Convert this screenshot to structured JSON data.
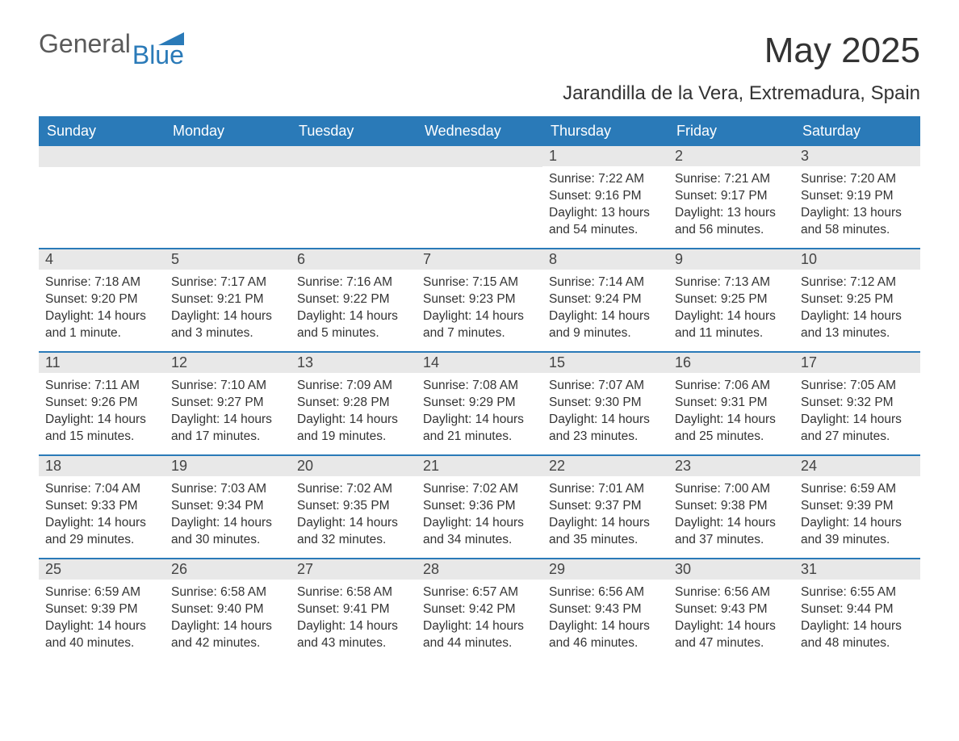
{
  "logo": {
    "part1": "General",
    "part2": "Blue"
  },
  "title": "May 2025",
  "location": "Jarandilla de la Vera, Extremadura, Spain",
  "colors": {
    "header_bg": "#2a7ab8",
    "header_text": "#ffffff",
    "daynum_bg": "#e8e8e8",
    "border": "#2a7ab8",
    "body_text": "#333333",
    "logo_general": "#5a5a5a",
    "logo_blue": "#2a7ab8"
  },
  "day_headers": [
    "Sunday",
    "Monday",
    "Tuesday",
    "Wednesday",
    "Thursday",
    "Friday",
    "Saturday"
  ],
  "weeks": [
    [
      {
        "day": "",
        "sunrise": "",
        "sunset": "",
        "daylight": ""
      },
      {
        "day": "",
        "sunrise": "",
        "sunset": "",
        "daylight": ""
      },
      {
        "day": "",
        "sunrise": "",
        "sunset": "",
        "daylight": ""
      },
      {
        "day": "",
        "sunrise": "",
        "sunset": "",
        "daylight": ""
      },
      {
        "day": "1",
        "sunrise": "Sunrise: 7:22 AM",
        "sunset": "Sunset: 9:16 PM",
        "daylight": "Daylight: 13 hours and 54 minutes."
      },
      {
        "day": "2",
        "sunrise": "Sunrise: 7:21 AM",
        "sunset": "Sunset: 9:17 PM",
        "daylight": "Daylight: 13 hours and 56 minutes."
      },
      {
        "day": "3",
        "sunrise": "Sunrise: 7:20 AM",
        "sunset": "Sunset: 9:19 PM",
        "daylight": "Daylight: 13 hours and 58 minutes."
      }
    ],
    [
      {
        "day": "4",
        "sunrise": "Sunrise: 7:18 AM",
        "sunset": "Sunset: 9:20 PM",
        "daylight": "Daylight: 14 hours and 1 minute."
      },
      {
        "day": "5",
        "sunrise": "Sunrise: 7:17 AM",
        "sunset": "Sunset: 9:21 PM",
        "daylight": "Daylight: 14 hours and 3 minutes."
      },
      {
        "day": "6",
        "sunrise": "Sunrise: 7:16 AM",
        "sunset": "Sunset: 9:22 PM",
        "daylight": "Daylight: 14 hours and 5 minutes."
      },
      {
        "day": "7",
        "sunrise": "Sunrise: 7:15 AM",
        "sunset": "Sunset: 9:23 PM",
        "daylight": "Daylight: 14 hours and 7 minutes."
      },
      {
        "day": "8",
        "sunrise": "Sunrise: 7:14 AM",
        "sunset": "Sunset: 9:24 PM",
        "daylight": "Daylight: 14 hours and 9 minutes."
      },
      {
        "day": "9",
        "sunrise": "Sunrise: 7:13 AM",
        "sunset": "Sunset: 9:25 PM",
        "daylight": "Daylight: 14 hours and 11 minutes."
      },
      {
        "day": "10",
        "sunrise": "Sunrise: 7:12 AM",
        "sunset": "Sunset: 9:25 PM",
        "daylight": "Daylight: 14 hours and 13 minutes."
      }
    ],
    [
      {
        "day": "11",
        "sunrise": "Sunrise: 7:11 AM",
        "sunset": "Sunset: 9:26 PM",
        "daylight": "Daylight: 14 hours and 15 minutes."
      },
      {
        "day": "12",
        "sunrise": "Sunrise: 7:10 AM",
        "sunset": "Sunset: 9:27 PM",
        "daylight": "Daylight: 14 hours and 17 minutes."
      },
      {
        "day": "13",
        "sunrise": "Sunrise: 7:09 AM",
        "sunset": "Sunset: 9:28 PM",
        "daylight": "Daylight: 14 hours and 19 minutes."
      },
      {
        "day": "14",
        "sunrise": "Sunrise: 7:08 AM",
        "sunset": "Sunset: 9:29 PM",
        "daylight": "Daylight: 14 hours and 21 minutes."
      },
      {
        "day": "15",
        "sunrise": "Sunrise: 7:07 AM",
        "sunset": "Sunset: 9:30 PM",
        "daylight": "Daylight: 14 hours and 23 minutes."
      },
      {
        "day": "16",
        "sunrise": "Sunrise: 7:06 AM",
        "sunset": "Sunset: 9:31 PM",
        "daylight": "Daylight: 14 hours and 25 minutes."
      },
      {
        "day": "17",
        "sunrise": "Sunrise: 7:05 AM",
        "sunset": "Sunset: 9:32 PM",
        "daylight": "Daylight: 14 hours and 27 minutes."
      }
    ],
    [
      {
        "day": "18",
        "sunrise": "Sunrise: 7:04 AM",
        "sunset": "Sunset: 9:33 PM",
        "daylight": "Daylight: 14 hours and 29 minutes."
      },
      {
        "day": "19",
        "sunrise": "Sunrise: 7:03 AM",
        "sunset": "Sunset: 9:34 PM",
        "daylight": "Daylight: 14 hours and 30 minutes."
      },
      {
        "day": "20",
        "sunrise": "Sunrise: 7:02 AM",
        "sunset": "Sunset: 9:35 PM",
        "daylight": "Daylight: 14 hours and 32 minutes."
      },
      {
        "day": "21",
        "sunrise": "Sunrise: 7:02 AM",
        "sunset": "Sunset: 9:36 PM",
        "daylight": "Daylight: 14 hours and 34 minutes."
      },
      {
        "day": "22",
        "sunrise": "Sunrise: 7:01 AM",
        "sunset": "Sunset: 9:37 PM",
        "daylight": "Daylight: 14 hours and 35 minutes."
      },
      {
        "day": "23",
        "sunrise": "Sunrise: 7:00 AM",
        "sunset": "Sunset: 9:38 PM",
        "daylight": "Daylight: 14 hours and 37 minutes."
      },
      {
        "day": "24",
        "sunrise": "Sunrise: 6:59 AM",
        "sunset": "Sunset: 9:39 PM",
        "daylight": "Daylight: 14 hours and 39 minutes."
      }
    ],
    [
      {
        "day": "25",
        "sunrise": "Sunrise: 6:59 AM",
        "sunset": "Sunset: 9:39 PM",
        "daylight": "Daylight: 14 hours and 40 minutes."
      },
      {
        "day": "26",
        "sunrise": "Sunrise: 6:58 AM",
        "sunset": "Sunset: 9:40 PM",
        "daylight": "Daylight: 14 hours and 42 minutes."
      },
      {
        "day": "27",
        "sunrise": "Sunrise: 6:58 AM",
        "sunset": "Sunset: 9:41 PM",
        "daylight": "Daylight: 14 hours and 43 minutes."
      },
      {
        "day": "28",
        "sunrise": "Sunrise: 6:57 AM",
        "sunset": "Sunset: 9:42 PM",
        "daylight": "Daylight: 14 hours and 44 minutes."
      },
      {
        "day": "29",
        "sunrise": "Sunrise: 6:56 AM",
        "sunset": "Sunset: 9:43 PM",
        "daylight": "Daylight: 14 hours and 46 minutes."
      },
      {
        "day": "30",
        "sunrise": "Sunrise: 6:56 AM",
        "sunset": "Sunset: 9:43 PM",
        "daylight": "Daylight: 14 hours and 47 minutes."
      },
      {
        "day": "31",
        "sunrise": "Sunrise: 6:55 AM",
        "sunset": "Sunset: 9:44 PM",
        "daylight": "Daylight: 14 hours and 48 minutes."
      }
    ]
  ]
}
